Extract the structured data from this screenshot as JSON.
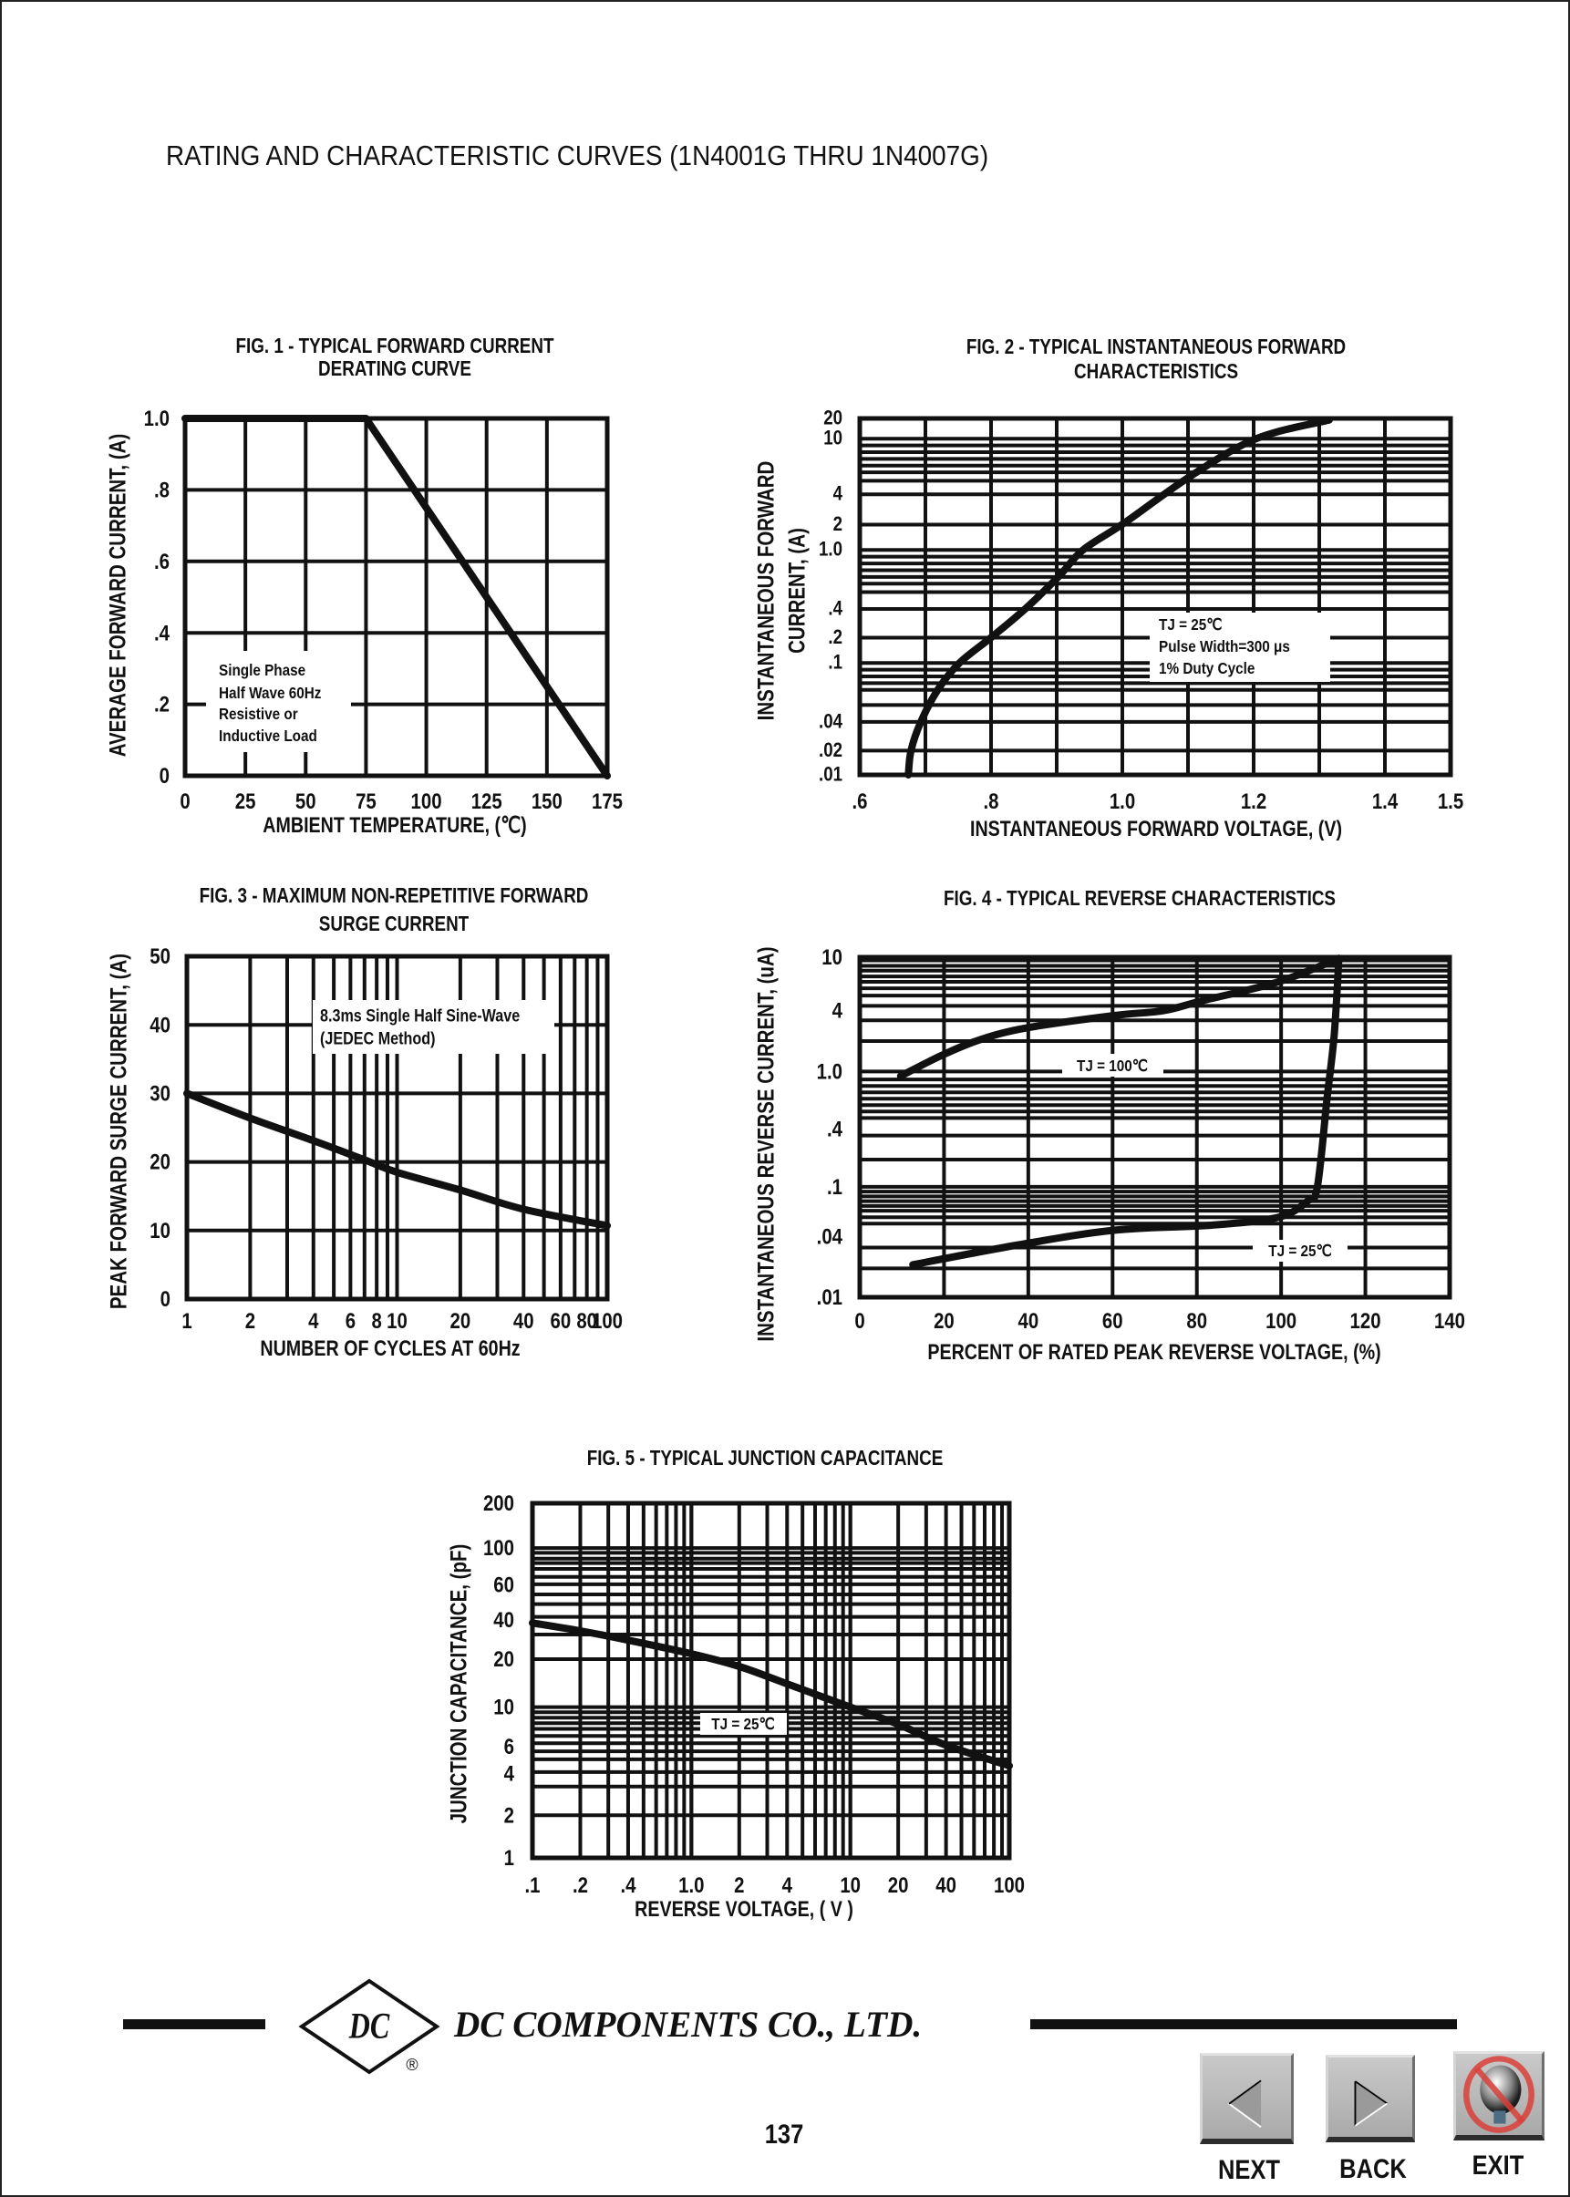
{
  "page": {
    "header": "RATING AND CHARACTERISTIC CURVES (1N4001G THRU 1N4007G)",
    "logo_text": "DC",
    "registered_mark": "®",
    "company": "DC COMPONENTS CO., LTD.",
    "page_number": "137"
  },
  "nav": {
    "next": "NEXT",
    "back": "BACK",
    "exit": "EXIT",
    "next_icon": "triangle-left-icon",
    "back_icon": "triangle-right-icon",
    "exit_icon": "no-lightbulb-icon"
  },
  "chart_data": [
    {
      "id": "fig1",
      "type": "line",
      "title_lines": [
        "FIG. 1 - TYPICAL FORWARD CURRENT",
        "DERATING CURVE"
      ],
      "xlabel": "AMBIENT TEMPERATURE, (℃)",
      "ylabel_lines": [
        "AVERAGE FORWARD  CURRENT, (A)"
      ],
      "x_scale": "linear",
      "y_scale": "linear",
      "xlim": [
        0,
        175
      ],
      "ylim": [
        0,
        1.0
      ],
      "grid": true,
      "x_ticks": [
        {
          "v": 0,
          "label": "0"
        },
        {
          "v": 25,
          "label": "25"
        },
        {
          "v": 50,
          "label": "50"
        },
        {
          "v": 75,
          "label": "75"
        },
        {
          "v": 100,
          "label": "100"
        },
        {
          "v": 125,
          "label": "125"
        },
        {
          "v": 150,
          "label": "150"
        },
        {
          "v": 175,
          "label": "175"
        }
      ],
      "y_ticks": [
        {
          "v": 1.0,
          "label": "1.0"
        },
        {
          "v": 0.8,
          "label": ".8"
        },
        {
          "v": 0.6,
          "label": ".6"
        },
        {
          "v": 0.4,
          "label": ".4"
        },
        {
          "v": 0.2,
          "label": ".2"
        },
        {
          "v": 0,
          "label": "0"
        }
      ],
      "annotation_lines": [
        "Single Phase",
        "Half Wave 60Hz",
        "Resistive or",
        "Inductive Load"
      ],
      "series": [
        {
          "x": [
            0,
            75,
            175
          ],
          "y": [
            1.0,
            1.0,
            0
          ]
        }
      ]
    },
    {
      "id": "fig2",
      "type": "line",
      "title_lines": [
        "FIG. 2 - TYPICAL INSTANTANEOUS FORWARD",
        "CHARACTERISTICS"
      ],
      "xlabel": "INSTANTANEOUS FORWARD VOLTAGE, (V)",
      "ylabel_lines": [
        "INSTANTANEOUS FORWARD",
        "CURRENT, (A)"
      ],
      "x_scale": "linear",
      "y_scale": "log",
      "xlim": [
        0.6,
        1.5
      ],
      "ylim": [
        0.01,
        20
      ],
      "grid": true,
      "x_ticks": [
        {
          "v": 0.6,
          "label": ".6"
        },
        {
          "v": 0.8,
          "label": ".8"
        },
        {
          "v": 1.0,
          "label": "1.0"
        },
        {
          "v": 1.2,
          "label": "1.2"
        },
        {
          "v": 1.4,
          "label": "1.4"
        },
        {
          "v": 1.5,
          "label": "1.5"
        }
      ],
      "y_ticks": [
        {
          "v": 20,
          "label": "20"
        },
        {
          "v": 10,
          "label": "10"
        },
        {
          "v": 4,
          "label": "4"
        },
        {
          "v": 2,
          "label": "2"
        },
        {
          "v": 1.0,
          "label": "1.0"
        },
        {
          "v": 0.4,
          "label": ".4"
        },
        {
          "v": 0.2,
          "label": ".2"
        },
        {
          "v": 0.1,
          "label": ".1"
        },
        {
          "v": 0.04,
          "label": ".04"
        },
        {
          "v": 0.02,
          "label": ".02"
        },
        {
          "v": 0.01,
          "label": ".01"
        }
      ],
      "annotation_lines": [
        "TJ = 25℃",
        "Pulse Width=300 μs",
        "1% Duty Cycle"
      ],
      "series": [
        {
          "x": [
            0.674,
            0.678,
            0.693,
            0.719,
            0.752,
            0.8,
            0.852,
            0.904,
            0.94,
            1.004,
            1.104,
            1.204,
            1.315
          ],
          "y": [
            0.01,
            0.02,
            0.04,
            0.066,
            0.1,
            0.2,
            0.4,
            0.67,
            1.0,
            2.1,
            5.4,
            10,
            18.9
          ]
        }
      ]
    },
    {
      "id": "fig3",
      "type": "line",
      "title_lines": [
        "FIG. 3 - MAXIMUM NON-REPETITIVE FORWARD",
        "SURGE CURRENT"
      ],
      "xlabel": "NUMBER OF CYCLES AT 60Hz",
      "ylabel_lines": [
        "PEAK FORWARD SURGE CURRENT, (A)"
      ],
      "x_scale": "log",
      "y_scale": "linear",
      "xlim": [
        1,
        100
      ],
      "ylim": [
        0,
        50
      ],
      "grid": true,
      "x_ticks": [
        {
          "v": 1,
          "label": "1"
        },
        {
          "v": 2,
          "label": "2"
        },
        {
          "v": 4,
          "label": "4"
        },
        {
          "v": 6,
          "label": "6"
        },
        {
          "v": 8,
          "label": "8"
        },
        {
          "v": 10,
          "label": "10"
        },
        {
          "v": 20,
          "label": "20"
        },
        {
          "v": 40,
          "label": "40"
        },
        {
          "v": 60,
          "label": "60"
        },
        {
          "v": 80,
          "label": "80"
        },
        {
          "v": 100,
          "label": "100"
        }
      ],
      "y_ticks": [
        {
          "v": 50,
          "label": "50"
        },
        {
          "v": 40,
          "label": "40"
        },
        {
          "v": 30,
          "label": "30"
        },
        {
          "v": 20,
          "label": "20"
        },
        {
          "v": 10,
          "label": "10"
        },
        {
          "v": 0,
          "label": "0"
        }
      ],
      "annotation_lines": [
        "8.3ms Single Half Sine-Wave",
        "(JEDEC Method)"
      ],
      "series": [
        {
          "x": [
            1,
            2,
            4,
            7,
            10,
            20,
            40,
            100
          ],
          "y": [
            30,
            26.4,
            23.1,
            20.3,
            18.5,
            15.9,
            13.1,
            10.7
          ]
        }
      ]
    },
    {
      "id": "fig4",
      "type": "line",
      "title_lines": [
        "FIG. 4 - TYPICAL REVERSE CHARACTERISTICS"
      ],
      "xlabel": "PERCENT OF RATED PEAK REVERSE VOLTAGE, (%)",
      "ylabel_lines": [
        "INSTANTANEOUS REVERSE CURRENT, (uA)"
      ],
      "x_scale": "linear",
      "y_scale": "log",
      "xlim": [
        0,
        140
      ],
      "ylim": [
        0.01,
        10
      ],
      "grid": true,
      "x_ticks": [
        {
          "v": 0,
          "label": "0"
        },
        {
          "v": 20,
          "label": "20"
        },
        {
          "v": 40,
          "label": "40"
        },
        {
          "v": 60,
          "label": "60"
        },
        {
          "v": 80,
          "label": "80"
        },
        {
          "v": 100,
          "label": "100"
        },
        {
          "v": 120,
          "label": "120"
        },
        {
          "v": 140,
          "label": "140"
        }
      ],
      "y_ticks": [
        {
          "v": 10,
          "label": "10"
        },
        {
          "v": 4,
          "label": "4"
        },
        {
          "v": 1.0,
          "label": "1.0"
        },
        {
          "v": 0.4,
          "label": ".4"
        },
        {
          "v": 0.1,
          "label": ".1"
        },
        {
          "v": 0.04,
          "label": ".04"
        },
        {
          "v": 0.01,
          "label": ".01"
        }
      ],
      "series": [
        {
          "name": "TJ = 100℃",
          "x": [
            9.7,
            19.4,
            28.6,
            40,
            60.6,
            72,
            81,
            99.4,
            113.7
          ],
          "y": [
            0.93,
            1.44,
            2.07,
            2.72,
            3.59,
            4.0,
            4.72,
            6.56,
            9.8
          ]
        },
        {
          "name": "TJ = 25℃",
          "x": [
            12.6,
            37.7,
            60.6,
            83.4,
            99.4,
            106.3,
            108.6,
            110.9,
            112.6,
            113.7
          ],
          "y": [
            0.021,
            0.033,
            0.0449,
            0.0492,
            0.057,
            0.077,
            0.1,
            0.65,
            2.31,
            9.8
          ]
        }
      ]
    },
    {
      "id": "fig5",
      "type": "line",
      "title_lines": [
        "FIG. 5 - TYPICAL JUNCTION CAPACITANCE"
      ],
      "xlabel": "REVERSE VOLTAGE, ( V )",
      "ylabel_lines": [
        "JUNCTION CAPACITANCE, (pF)"
      ],
      "x_scale": "log",
      "y_scale": "log",
      "xlim": [
        0.1,
        100
      ],
      "ylim": [
        1,
        200
      ],
      "grid": true,
      "x_ticks": [
        {
          "v": 0.1,
          "label": ".1"
        },
        {
          "v": 0.2,
          "label": ".2"
        },
        {
          "v": 0.4,
          "label": ".4"
        },
        {
          "v": 1.0,
          "label": "1.0"
        },
        {
          "v": 2,
          "label": "2"
        },
        {
          "v": 4,
          "label": "4"
        },
        {
          "v": 10,
          "label": "10"
        },
        {
          "v": 20,
          "label": "20"
        },
        {
          "v": 40,
          "label": "40"
        },
        {
          "v": 100,
          "label": "100"
        }
      ],
      "y_ticks": [
        {
          "v": 200,
          "label": "200"
        },
        {
          "v": 100,
          "label": "100"
        },
        {
          "v": 60,
          "label": "60"
        },
        {
          "v": 40,
          "label": "40"
        },
        {
          "v": 20,
          "label": "20"
        },
        {
          "v": 10,
          "label": "10"
        },
        {
          "v": 6,
          "label": "6"
        },
        {
          "v": 4,
          "label": "4"
        },
        {
          "v": 2,
          "label": "2"
        },
        {
          "v": 1,
          "label": "1"
        }
      ],
      "annotation_lines": [
        "TJ = 25℃"
      ],
      "series": [
        {
          "x": [
            0.1,
            0.2,
            0.4,
            1.0,
            2,
            4,
            10,
            20,
            40,
            100
          ],
          "y": [
            38,
            33,
            28,
            22,
            18,
            14,
            10,
            8,
            6.1,
            4.5
          ]
        }
      ]
    }
  ]
}
